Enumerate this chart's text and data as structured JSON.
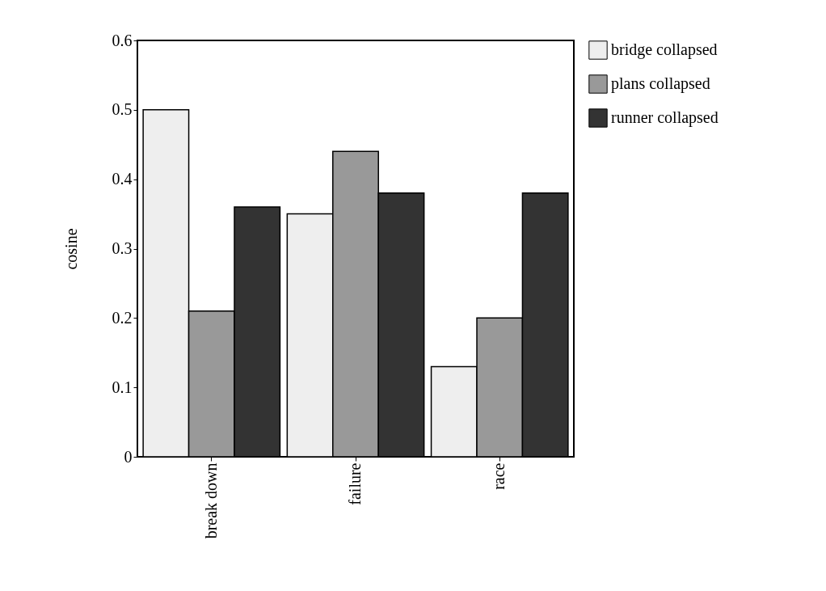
{
  "chart_data": {
    "type": "bar",
    "ylabel": "cosine",
    "categories": [
      "break down",
      "failure",
      "race"
    ],
    "series": [
      {
        "name": "bridge collapsed",
        "color": "#eeeeee",
        "values": [
          0.5,
          0.35,
          0.13
        ]
      },
      {
        "name": "plans collapsed",
        "color": "#999999",
        "values": [
          0.21,
          0.44,
          0.2
        ]
      },
      {
        "name": "runner collapsed",
        "color": "#333333",
        "values": [
          0.36,
          0.38,
          0.38
        ]
      }
    ],
    "ylim": [
      0,
      0.6
    ],
    "yticks": [
      0,
      0.1,
      0.2,
      0.3,
      0.4,
      0.5,
      0.6
    ],
    "grid": false,
    "legend": "right"
  }
}
